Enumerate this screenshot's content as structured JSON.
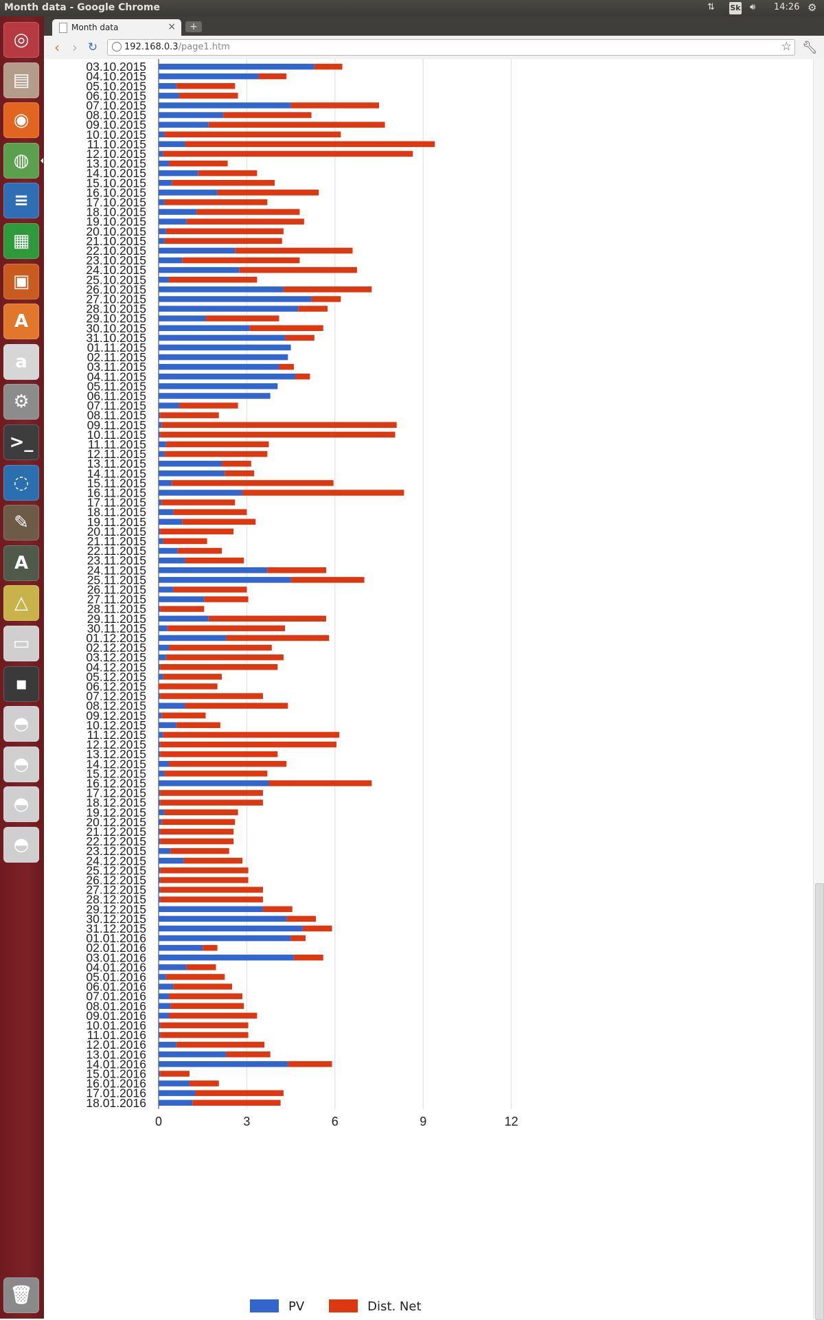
{
  "window": {
    "title": "Month data - Google Chrome",
    "clock": "14:26",
    "keyboard_layout": "Sk"
  },
  "launcher": {
    "items": [
      {
        "name": "ubuntu-home-icon",
        "glyph": "◎",
        "color": "#b63a3f"
      },
      {
        "name": "files-icon",
        "glyph": "▤",
        "color": "#b49c8a"
      },
      {
        "name": "firefox-icon",
        "glyph": "◉",
        "color": "#e1641f"
      },
      {
        "name": "chrome-icon",
        "glyph": "◍",
        "color": "#5aa04e"
      },
      {
        "name": "writer-icon",
        "glyph": "≡",
        "color": "#2f6db5"
      },
      {
        "name": "calc-icon",
        "glyph": "▦",
        "color": "#2f9a3c"
      },
      {
        "name": "impress-icon",
        "glyph": "▣",
        "color": "#c85b1d"
      },
      {
        "name": "software-center-icon",
        "glyph": "A",
        "color": "#e2772c"
      },
      {
        "name": "amazon-icon",
        "glyph": "a",
        "color": "#d6d6d6"
      },
      {
        "name": "system-settings-icon",
        "glyph": "⚙",
        "color": "#8c8c8c"
      },
      {
        "name": "terminal-icon",
        "glyph": ">_",
        "color": "#3d3d3d"
      },
      {
        "name": "ubuntu-one-icon",
        "glyph": "◌",
        "color": "#2a6fb0"
      },
      {
        "name": "gimp-icon",
        "glyph": "✎",
        "color": "#6d5a47"
      },
      {
        "name": "update-manager-icon",
        "glyph": "A",
        "color": "#4f5a4a"
      },
      {
        "name": "geometry-icon",
        "glyph": "△",
        "color": "#c8b24a"
      },
      {
        "name": "scanner-icon",
        "glyph": "▭",
        "color": "#cfcfcf"
      },
      {
        "name": "floppy-icon",
        "glyph": "▪",
        "color": "#3a3a3a"
      },
      {
        "name": "drive-icon-1",
        "glyph": "◓",
        "color": "#cfcfcf"
      },
      {
        "name": "drive-icon-2",
        "glyph": "◓",
        "color": "#cfcfcf"
      },
      {
        "name": "drive-icon-3",
        "glyph": "◓",
        "color": "#cfcfcf"
      },
      {
        "name": "drive-icon-4",
        "glyph": "◓",
        "color": "#cfcfcf"
      },
      {
        "name": "trash-icon",
        "glyph": "🗑",
        "color": "#8a8a8a"
      }
    ]
  },
  "browser": {
    "tab_title": "Month data",
    "url_host": "192.168.0.3",
    "url_path": "/page1.htm"
  },
  "chart_data": {
    "type": "bar",
    "orientation": "horizontal",
    "stacked": true,
    "xlim": [
      0,
      12
    ],
    "xticks": [
      "0",
      "3",
      "6",
      "9",
      "12"
    ],
    "categories": [
      "03.10.2015",
      "04.10.2015",
      "05.10.2015",
      "06.10.2015",
      "07.10.2015",
      "08.10.2015",
      "09.10.2015",
      "10.10.2015",
      "11.10.2015",
      "12.10.2015",
      "13.10.2015",
      "14.10.2015",
      "15.10.2015",
      "16.10.2015",
      "17.10.2015",
      "18.10.2015",
      "19.10.2015",
      "20.10.2015",
      "21.10.2015",
      "22.10.2015",
      "23.10.2015",
      "24.10.2015",
      "25.10.2015",
      "26.10.2015",
      "27.10.2015",
      "28.10.2015",
      "29.10.2015",
      "30.10.2015",
      "31.10.2015",
      "01.11.2015",
      "02.11.2015",
      "03.11.2015",
      "04.11.2015",
      "05.11.2015",
      "06.11.2015",
      "07.11.2015",
      "08.11.2015",
      "09.11.2015",
      "10.11.2015",
      "11.11.2015",
      "12.11.2015",
      "13.11.2015",
      "14.11.2015",
      "15.11.2015",
      "16.11.2015",
      "17.11.2015",
      "18.11.2015",
      "19.11.2015",
      "20.11.2015",
      "21.11.2015",
      "22.11.2015",
      "23.11.2015",
      "24.11.2015",
      "25.11.2015",
      "26.11.2015",
      "27.11.2015",
      "28.11.2015",
      "29.11.2015",
      "30.11.2015",
      "01.12.2015",
      "02.12.2015",
      "03.12.2015",
      "04.12.2015",
      "05.12.2015",
      "06.12.2015",
      "07.12.2015",
      "08.12.2015",
      "09.12.2015",
      "10.12.2015",
      "11.12.2015",
      "12.12.2015",
      "13.12.2015",
      "14.12.2015",
      "15.12.2015",
      "16.12.2015",
      "17.12.2015",
      "18.12.2015",
      "19.12.2015",
      "20.12.2015",
      "21.12.2015",
      "22.12.2015",
      "23.12.2015",
      "24.12.2015",
      "25.12.2015",
      "26.12.2015",
      "27.12.2015",
      "28.12.2015",
      "29.12.2015",
      "30.12.2015",
      "31.12.2015",
      "01.01.2016",
      "02.01.2016",
      "03.01.2016",
      "04.01.2016",
      "05.01.2016",
      "06.01.2016",
      "07.01.2016",
      "08.01.2016",
      "09.01.2016",
      "10.01.2016",
      "11.01.2016",
      "12.01.2016",
      "13.01.2016",
      "14.01.2016",
      "15.01.2016",
      "16.01.2016",
      "17.01.2016",
      "18.01.2016"
    ],
    "series": [
      {
        "name": "PV",
        "color": "#3366cc",
        "values": [
          5.3,
          3.4,
          0.6,
          0.7,
          4.5,
          2.2,
          1.7,
          0.2,
          0.9,
          0.15,
          0.35,
          1.35,
          0.45,
          2.0,
          0.2,
          1.3,
          0.95,
          0.25,
          0.2,
          2.6,
          0.8,
          2.75,
          0.35,
          4.25,
          5.2,
          4.75,
          1.6,
          3.1,
          4.3,
          4.5,
          4.4,
          4.1,
          4.65,
          4.05,
          3.8,
          0.7,
          0.05,
          0.1,
          0.05,
          0.25,
          0.2,
          2.15,
          2.25,
          0.45,
          2.85,
          0.1,
          0.5,
          0.8,
          0.05,
          0.15,
          0.65,
          0.9,
          3.7,
          4.5,
          0.5,
          1.55,
          0.05,
          1.7,
          0.3,
          2.3,
          0.35,
          0.25,
          0.05,
          0.15,
          0.0,
          0.05,
          0.9,
          0.1,
          0.6,
          0.15,
          0.05,
          0.05,
          0.35,
          0.2,
          3.75,
          0.05,
          0.05,
          0.2,
          0.1,
          0.05,
          0.05,
          0.4,
          0.85,
          0.05,
          0.05,
          0.05,
          0.05,
          3.55,
          4.35,
          4.9,
          4.5,
          1.5,
          4.6,
          0.95,
          0.25,
          0.5,
          0.35,
          0.4,
          0.35,
          0.05,
          0.05,
          0.6,
          2.3,
          4.4,
          0.05,
          1.05,
          1.25,
          1.15
        ]
      },
      {
        "name": "Dist. Net",
        "color": "#dc3912",
        "values": [
          0.95,
          0.95,
          2.0,
          2.0,
          3.0,
          3.0,
          6.0,
          6.0,
          8.5,
          8.5,
          2.0,
          2.0,
          3.5,
          3.45,
          3.5,
          3.5,
          4.0,
          4.0,
          4.0,
          4.0,
          4.0,
          4.0,
          3.0,
          3.0,
          1.0,
          1.0,
          2.5,
          2.5,
          1.0,
          0.0,
          0.0,
          0.5,
          0.5,
          0.0,
          0.0,
          2.0,
          2.0,
          8.0,
          8.0,
          3.5,
          3.5,
          1.0,
          1.0,
          5.5,
          5.5,
          2.5,
          2.5,
          2.5,
          2.5,
          1.5,
          1.5,
          2.0,
          2.0,
          2.5,
          2.5,
          1.5,
          1.5,
          4.0,
          4.0,
          3.5,
          3.5,
          4.0,
          4.0,
          2.0,
          2.0,
          3.5,
          3.5,
          1.5,
          1.5,
          6.0,
          6.0,
          4.0,
          4.0,
          3.5,
          3.5,
          3.5,
          3.5,
          2.5,
          2.5,
          2.5,
          2.5,
          2.0,
          2.0,
          3.0,
          3.0,
          3.5,
          3.5,
          1.0,
          1.0,
          1.0,
          0.5,
          0.5,
          1.0,
          1.0,
          2.0,
          2.0,
          2.5,
          2.5,
          3.0,
          3.0,
          3.0,
          3.0,
          1.5,
          1.5,
          1.0,
          1.0,
          3.0,
          3.0
        ]
      }
    ],
    "legend_position": "bottom",
    "grid": true
  }
}
